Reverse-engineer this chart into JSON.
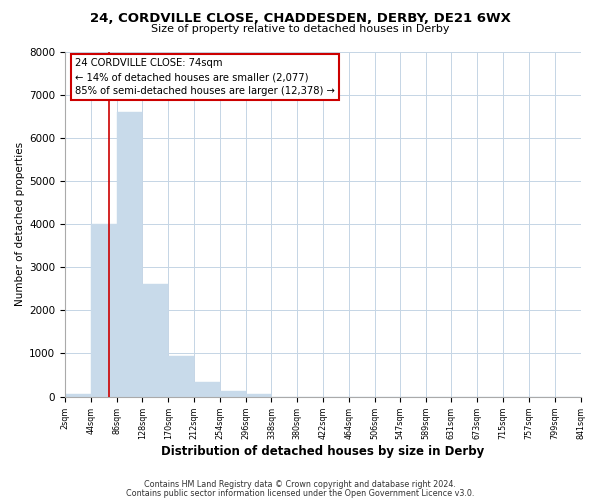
{
  "title": "24, CORDVILLE CLOSE, CHADDESDEN, DERBY, DE21 6WX",
  "subtitle": "Size of property relative to detached houses in Derby",
  "xlabel": "Distribution of detached houses by size in Derby",
  "ylabel": "Number of detached properties",
  "bar_edges": [
    2,
    44,
    86,
    128,
    170,
    212,
    254,
    296,
    338,
    380,
    422,
    464,
    506,
    547,
    589,
    631,
    673,
    715,
    757,
    799,
    841
  ],
  "bar_heights": [
    50,
    4000,
    6600,
    2600,
    950,
    330,
    120,
    50,
    0,
    0,
    0,
    0,
    0,
    0,
    0,
    0,
    0,
    0,
    0,
    0
  ],
  "bar_color": "#c8daea",
  "bar_edgecolor": "#c8daea",
  "property_line_x": 74,
  "property_line_color": "#cc0000",
  "annotation_line1": "24 CORDVILLE CLOSE: 74sqm",
  "annotation_line2": "← 14% of detached houses are smaller (2,077)",
  "annotation_line3": "85% of semi-detached houses are larger (12,378) →",
  "annotation_box_edgecolor": "#cc0000",
  "annotation_box_facecolor": "#ffffff",
  "ylim": [
    0,
    8000
  ],
  "yticks": [
    0,
    1000,
    2000,
    3000,
    4000,
    5000,
    6000,
    7000,
    8000
  ],
  "xtick_labels": [
    "2sqm",
    "44sqm",
    "86sqm",
    "128sqm",
    "170sqm",
    "212sqm",
    "254sqm",
    "296sqm",
    "338sqm",
    "380sqm",
    "422sqm",
    "464sqm",
    "506sqm",
    "547sqm",
    "589sqm",
    "631sqm",
    "673sqm",
    "715sqm",
    "757sqm",
    "799sqm",
    "841sqm"
  ],
  "footer1": "Contains HM Land Registry data © Crown copyright and database right 2024.",
  "footer2": "Contains public sector information licensed under the Open Government Licence v3.0.",
  "background_color": "#ffffff",
  "grid_color": "#c5d5e5"
}
